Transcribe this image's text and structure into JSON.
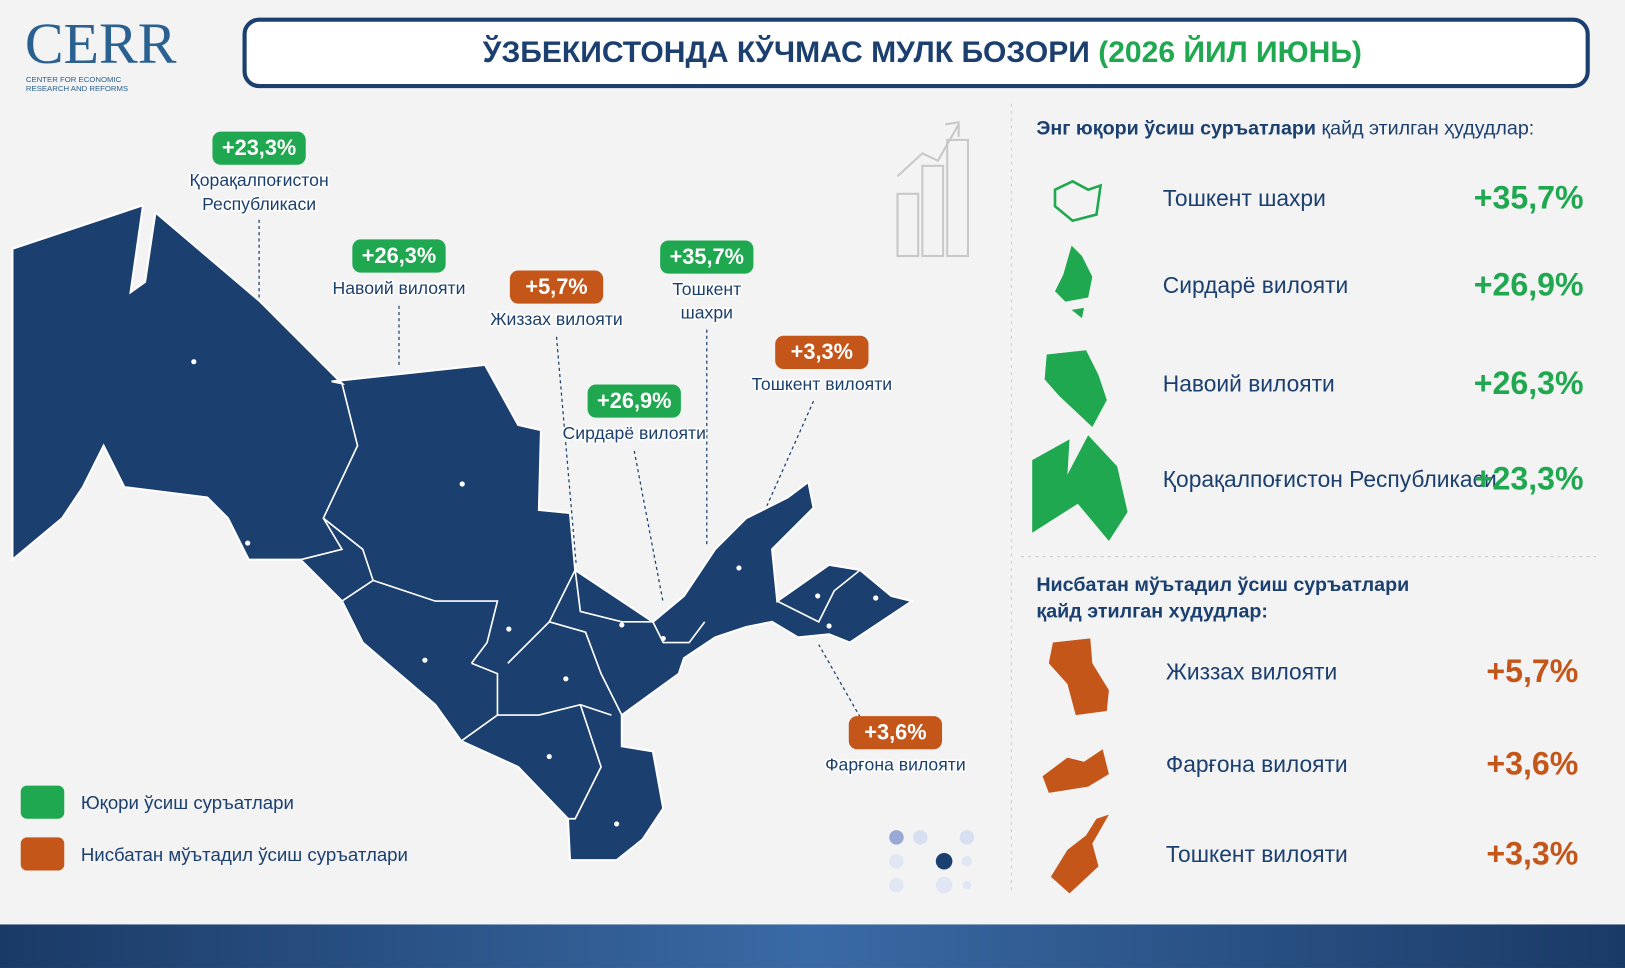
{
  "logo": {
    "name": "CERR",
    "subtitle": [
      "CENTER FOR ECONOMIC",
      "RESEARCH AND REFORMS"
    ]
  },
  "header": {
    "title": "ЎЗБЕКИСТОНДА КЎЧМАС МУЛК БОЗОРИ",
    "title_highlight": "(2026 ЙИЛ ИЮНЬ)",
    "highlight_color": "#1fa84f"
  },
  "map": {
    "regions": [
      {
        "name": [
          "Қорақалпоғистон",
          "Республикаси"
        ],
        "value": "+23,3%",
        "color": "#1fa84f"
      },
      {
        "name": [
          "Навоий вилояти"
        ],
        "value": "+26,3%",
        "color": "#1fa84f"
      },
      {
        "name": [
          "Жиззах вилояти"
        ],
        "value": "+5,7%",
        "color": "#c4561a"
      },
      {
        "name": [
          "Тошкент",
          "шахри"
        ],
        "value": "+35,7%",
        "color": "#1fa84f"
      },
      {
        "name": [
          "Сирдарё вилояти"
        ],
        "value": "+26,9%",
        "color": "#1fa84f"
      },
      {
        "name": [
          "Тошкент вилояти"
        ],
        "value": "+3,3%",
        "color": "#c4561a"
      },
      {
        "name": [
          "Фарғона вилояти"
        ],
        "value": "+3,6%",
        "color": "#c4561a"
      }
    ]
  },
  "legend": [
    {
      "label": "Юқори ўсиш суръатлари",
      "color": "#1fa84f"
    },
    {
      "label": "Нисбатан мўътадил ўсиш суръатлари",
      "color": "#c4561a"
    }
  ],
  "panel": {
    "high": {
      "heading": [
        "Энг юқори ўсиш суръатлари",
        "қайд этилган ҳудудлар:"
      ],
      "color": "#1fa84f",
      "items": [
        {
          "name": "Тошкент шахри",
          "value": "+35,7%"
        },
        {
          "name": "Сирдарё вилояти",
          "value": "+26,9%"
        },
        {
          "name": "Навоий вилояти",
          "value": "+26,3%"
        },
        {
          "name": "Қорақалпоғистон Республикаси",
          "value": "+23,3%"
        }
      ]
    },
    "moderate": {
      "heading": [
        "Нисбатан мўътадил ўсиш суръатлари",
        "қайд этилган худудлар:"
      ],
      "color": "#c4561a",
      "items": [
        {
          "name": "Жиззах вилояти",
          "value": "+5,7%"
        },
        {
          "name": "Фарғона вилояти",
          "value": "+3,6%"
        },
        {
          "name": "Тошкент вилояти",
          "value": "+3,3%"
        }
      ]
    }
  }
}
